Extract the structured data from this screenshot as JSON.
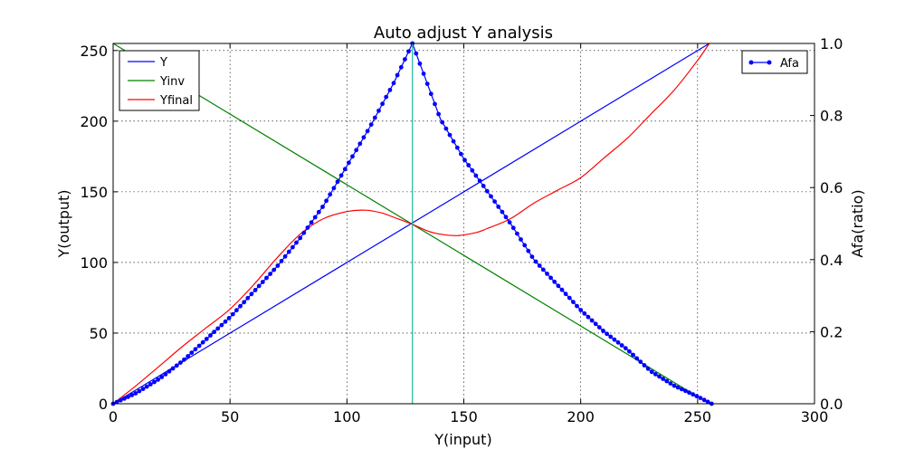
{
  "chart_data": {
    "type": "line",
    "title": "Auto adjust Y analysis",
    "xlabel": "Y(input)",
    "ylabel": "Y(output)",
    "y2label": "Afa(ratio)",
    "xlim": [
      0,
      300
    ],
    "ylim": [
      0,
      255
    ],
    "y2lim": [
      0.0,
      1.0
    ],
    "grid": true,
    "x_ticks": [
      0,
      50,
      100,
      150,
      200,
      250,
      300
    ],
    "y_ticks": [
      0,
      50,
      100,
      150,
      200,
      250
    ],
    "y2_ticks": [
      "0.0",
      "0.2",
      "0.4",
      "0.6",
      "0.8",
      "1.0"
    ],
    "legend_left": {
      "position": "top-left",
      "entries": [
        "Y",
        "Yinv",
        "Yfinal"
      ]
    },
    "legend_right": {
      "position": "top-right",
      "entries": [
        "Afa"
      ]
    },
    "series": [
      {
        "name": "Y",
        "axis": "left",
        "color": "#0000ff",
        "x": [
          0,
          255
        ],
        "values": [
          0,
          255
        ]
      },
      {
        "name": "Yinv",
        "axis": "left",
        "color": "#008000",
        "x": [
          0,
          255
        ],
        "values": [
          255,
          0
        ]
      },
      {
        "name": "Yfinal",
        "axis": "left",
        "color": "#ff0000",
        "x": [
          0,
          10,
          20,
          30,
          40,
          50,
          60,
          70,
          80,
          90,
          100,
          108,
          115,
          120,
          128,
          135,
          140,
          147,
          155,
          160,
          170,
          180,
          190,
          200,
          210,
          220,
          230,
          240,
          250,
          255
        ],
        "values": [
          0,
          13,
          27,
          41,
          54,
          67,
          84,
          103,
          120,
          131,
          136,
          137,
          135,
          132,
          127,
          122,
          120,
          119,
          121,
          124,
          131,
          142,
          151,
          160,
          174,
          188,
          205,
          222,
          243,
          255
        ]
      },
      {
        "name": "Afa",
        "axis": "right",
        "color": "#0000ff",
        "markers": true,
        "x": [
          0,
          10,
          20,
          30,
          40,
          50,
          60,
          70,
          80,
          90,
          100,
          110,
          120,
          128,
          140,
          150,
          160,
          170,
          180,
          190,
          200,
          210,
          220,
          230,
          240,
          250,
          256
        ],
        "values": [
          0.0,
          0.03,
          0.07,
          0.12,
          0.18,
          0.24,
          0.31,
          0.38,
          0.46,
          0.55,
          0.66,
          0.77,
          0.89,
          1.0,
          0.79,
          0.68,
          0.59,
          0.5,
          0.4,
          0.33,
          0.26,
          0.2,
          0.15,
          0.09,
          0.05,
          0.02,
          0.0
        ]
      },
      {
        "name": "vertical-line",
        "axis": "left",
        "color": "#1abc9c",
        "x": [
          128,
          128
        ],
        "values": [
          0,
          255
        ]
      }
    ]
  }
}
